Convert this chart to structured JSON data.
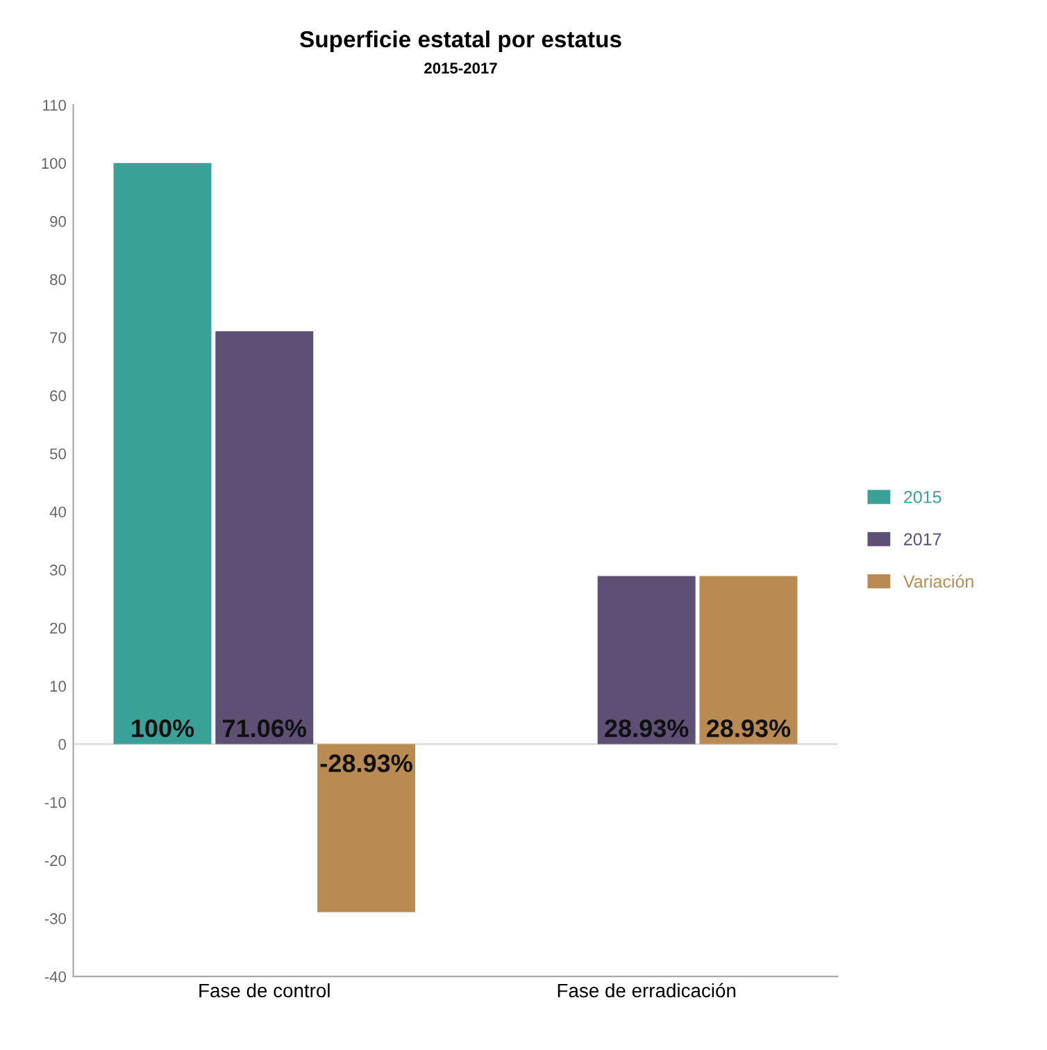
{
  "chart_data": {
    "type": "bar",
    "title": "Superficie estatal por estatus",
    "subtitle": "2015-2017",
    "categories": [
      "Fase de control",
      "Fase de erradicación"
    ],
    "series": [
      {
        "name": "2015",
        "color": "#3aa198",
        "values": [
          100,
          null
        ],
        "value_labels": [
          "100%",
          null
        ]
      },
      {
        "name": "2017",
        "color": "#5e4f74",
        "values": [
          71.06,
          28.93
        ],
        "value_labels": [
          "71.06%",
          "28.93%"
        ]
      },
      {
        "name": "Variación",
        "color": "#b98a52",
        "values": [
          -28.93,
          28.93
        ],
        "value_labels": [
          "-28.93%",
          "28.93%"
        ]
      }
    ],
    "ylim": [
      -40,
      110
    ],
    "yticks": [
      -40,
      -30,
      -20,
      -10,
      0,
      10,
      20,
      30,
      40,
      50,
      60,
      70,
      80,
      90,
      100,
      110
    ],
    "grid": false,
    "legend": "right",
    "ref_lines": [
      {
        "axis": "y",
        "value": 0,
        "color": "#e0e0e0"
      }
    ]
  }
}
